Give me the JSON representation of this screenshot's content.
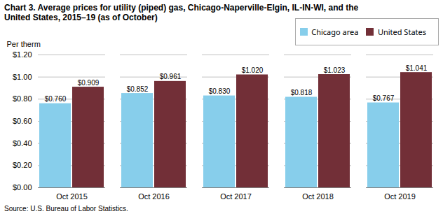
{
  "chart_data": {
    "type": "bar",
    "title": [
      "Chart 3. Average prices for utility (piped) gas, Chicago-Naperville-Elgin, IL-IN-WI, and the",
      "United States, 2015–19 (as of October)"
    ],
    "ylabel": "Per therm",
    "categories": [
      "Oct 2015",
      "Oct 2016",
      "Oct 2017",
      "Oct 2018",
      "Oct 2019"
    ],
    "series": [
      {
        "name": "Chicago area",
        "color": "#87CEEB",
        "values": [
          0.76,
          0.852,
          0.83,
          0.818,
          0.767
        ],
        "value_labels": [
          "$0.760",
          "$0.852",
          "$0.830",
          "$0.818",
          "$0.767"
        ]
      },
      {
        "name": "United States",
        "color": "#722F37",
        "values": [
          0.909,
          0.961,
          1.02,
          1.023,
          1.041
        ],
        "value_labels": [
          "$0.909",
          "$0.961",
          "$1.020",
          "$1.023",
          "$1.041"
        ]
      }
    ],
    "ylim": [
      0.0,
      1.2
    ],
    "yticks": [
      {
        "value": 0.0,
        "label": "$0.00"
      },
      {
        "value": 0.2,
        "label": "$0.20"
      },
      {
        "value": 0.4,
        "label": "$0.40"
      },
      {
        "value": 0.6,
        "label": "$0.60"
      },
      {
        "value": 0.8,
        "label": "$0.80"
      },
      {
        "value": 1.0,
        "label": "$1.00"
      },
      {
        "value": 1.2,
        "label": "$1.20"
      }
    ],
    "grid": true,
    "legend": "upper right",
    "data_labels": true,
    "source": "Source: U.S. Bureau of Labor Statistics."
  }
}
